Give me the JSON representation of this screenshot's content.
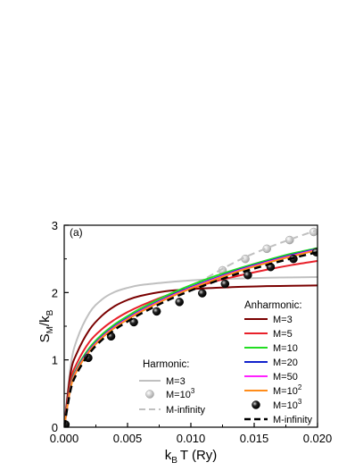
{
  "chart_data": {
    "type": "line",
    "panel_label": "(a)",
    "xlim": [
      0,
      0.02
    ],
    "ylim": [
      0,
      3
    ],
    "x_ticks": [
      "0.000",
      "0.005",
      "0.010",
      "0.015",
      "0.020"
    ],
    "y_ticks": [
      "0",
      "1",
      "2",
      "3"
    ],
    "ylabel": {
      "main": "S",
      "sub1": "M",
      "mid": "/k",
      "sub2": "B"
    },
    "xlabel": {
      "main": "k",
      "sub": "B",
      "rest": "T (Ry)"
    },
    "legends": {
      "harmonic": {
        "title": "Harmonic:",
        "entries": [
          "M=3",
          "M=10",
          "M-infinity"
        ],
        "entry_sup": "3"
      },
      "anharmonic": {
        "title": "Anharmonic:",
        "entries": [
          "M=3",
          "M=5",
          "M=10",
          "M=20",
          "M=50",
          "M=10",
          "M=10",
          "M-infinity"
        ],
        "entry_sup": [
          "",
          "",
          "",
          "",
          "",
          "2",
          "3",
          ""
        ]
      }
    },
    "series": [
      {
        "group": "harmonic",
        "name": "M=3",
        "color": "#c0c0c0",
        "style": "solid",
        "x": [
          0,
          0.0005,
          0.001,
          0.002,
          0.003,
          0.004,
          0.005,
          0.006,
          0.008,
          0.01,
          0.012,
          0.014,
          0.016,
          0.018,
          0.02
        ],
        "y": [
          0,
          0.9,
          1.3,
          1.7,
          1.9,
          2.01,
          2.07,
          2.11,
          2.15,
          2.18,
          2.2,
          2.21,
          2.22,
          2.225,
          2.23
        ]
      },
      {
        "group": "harmonic",
        "name": "M=10^3",
        "color": "#c8c8c8",
        "style": "markers",
        "x": [
          0.0108,
          0.0125,
          0.0143,
          0.016,
          0.0178,
          0.0197
        ],
        "y": [
          2.12,
          2.33,
          2.5,
          2.65,
          2.78,
          2.9
        ]
      },
      {
        "group": "harmonic",
        "name": "M-infinity",
        "color": "#c0c0c0",
        "style": "dashed",
        "x": [
          0.0105,
          0.012,
          0.014,
          0.016,
          0.018,
          0.02
        ],
        "y": [
          2.13,
          2.3,
          2.5,
          2.66,
          2.8,
          2.93
        ]
      },
      {
        "group": "anharmonic",
        "name": "M=3",
        "color": "#7a0000",
        "style": "solid",
        "x": [
          0,
          0.0005,
          0.001,
          0.002,
          0.003,
          0.004,
          0.005,
          0.006,
          0.008,
          0.01,
          0.012,
          0.014,
          0.016,
          0.018,
          0.02
        ],
        "y": [
          0,
          0.8,
          1.1,
          1.45,
          1.66,
          1.8,
          1.89,
          1.95,
          2.02,
          2.05,
          2.07,
          2.085,
          2.095,
          2.1,
          2.105
        ]
      },
      {
        "group": "anharmonic",
        "name": "M=5",
        "color": "#e8202a",
        "style": "solid",
        "x": [
          0,
          0.0005,
          0.001,
          0.002,
          0.003,
          0.004,
          0.005,
          0.006,
          0.008,
          0.01,
          0.012,
          0.014,
          0.016,
          0.018,
          0.02
        ],
        "y": [
          0,
          0.68,
          0.95,
          1.27,
          1.46,
          1.6,
          1.71,
          1.8,
          1.95,
          2.06,
          2.17,
          2.26,
          2.34,
          2.41,
          2.47
        ]
      },
      {
        "group": "anharmonic",
        "name": "M=10",
        "color": "#22dd22",
        "style": "solid",
        "x": [
          0,
          0.0005,
          0.001,
          0.002,
          0.003,
          0.004,
          0.005,
          0.006,
          0.008,
          0.01,
          0.012,
          0.014,
          0.016,
          0.018,
          0.02
        ],
        "y": [
          0,
          0.62,
          0.88,
          1.18,
          1.38,
          1.53,
          1.65,
          1.76,
          1.95,
          2.11,
          2.25,
          2.37,
          2.48,
          2.58,
          2.66
        ]
      },
      {
        "group": "anharmonic",
        "name": "M=20",
        "color": "#1122cc",
        "style": "solid",
        "x": [
          0,
          0.0005,
          0.001,
          0.002,
          0.003,
          0.004,
          0.005,
          0.006,
          0.008,
          0.01,
          0.012,
          0.014,
          0.016,
          0.018,
          0.02
        ],
        "y": [
          0,
          0.6,
          0.86,
          1.15,
          1.35,
          1.5,
          1.62,
          1.73,
          1.92,
          2.08,
          2.22,
          2.35,
          2.46,
          2.56,
          2.65
        ]
      },
      {
        "group": "anharmonic",
        "name": "M=50",
        "color": "#ff22ff",
        "style": "solid",
        "x": [
          0,
          0.0005,
          0.001,
          0.002,
          0.003,
          0.004,
          0.005,
          0.006,
          0.008,
          0.01,
          0.012,
          0.014,
          0.016,
          0.018,
          0.02
        ],
        "y": [
          0,
          0.59,
          0.85,
          1.14,
          1.34,
          1.49,
          1.61,
          1.72,
          1.91,
          2.07,
          2.21,
          2.34,
          2.45,
          2.55,
          2.64
        ]
      },
      {
        "group": "anharmonic",
        "name": "M=10^2",
        "color": "#ff8c1a",
        "style": "solid",
        "x": [
          0,
          0.0005,
          0.001,
          0.002,
          0.003,
          0.004,
          0.005,
          0.006,
          0.008,
          0.01,
          0.012,
          0.014,
          0.016,
          0.018,
          0.02
        ],
        "y": [
          0,
          0.58,
          0.84,
          1.13,
          1.33,
          1.48,
          1.6,
          1.71,
          1.9,
          2.06,
          2.2,
          2.33,
          2.44,
          2.54,
          2.63
        ]
      },
      {
        "group": "anharmonic",
        "name": "M=10^3",
        "color": "#000000",
        "style": "markers",
        "x": [
          0.0001,
          0.0019,
          0.0037,
          0.0055,
          0.0073,
          0.0091,
          0.0109,
          0.0127,
          0.0145,
          0.0163,
          0.0181,
          0.0199
        ],
        "y": [
          0.04,
          1.03,
          1.35,
          1.56,
          1.72,
          1.86,
          1.99,
          2.13,
          2.26,
          2.38,
          2.5,
          2.6
        ]
      },
      {
        "group": "anharmonic",
        "name": "M-infinity",
        "color": "#000000",
        "style": "dashed",
        "x": [
          0,
          0.0005,
          0.001,
          0.002,
          0.003,
          0.004,
          0.005,
          0.006,
          0.008,
          0.01,
          0.012,
          0.014,
          0.016,
          0.018,
          0.02
        ],
        "y": [
          0,
          0.55,
          0.8,
          1.1,
          1.3,
          1.45,
          1.57,
          1.68,
          1.87,
          2.03,
          2.17,
          2.3,
          2.41,
          2.51,
          2.6
        ]
      }
    ]
  }
}
